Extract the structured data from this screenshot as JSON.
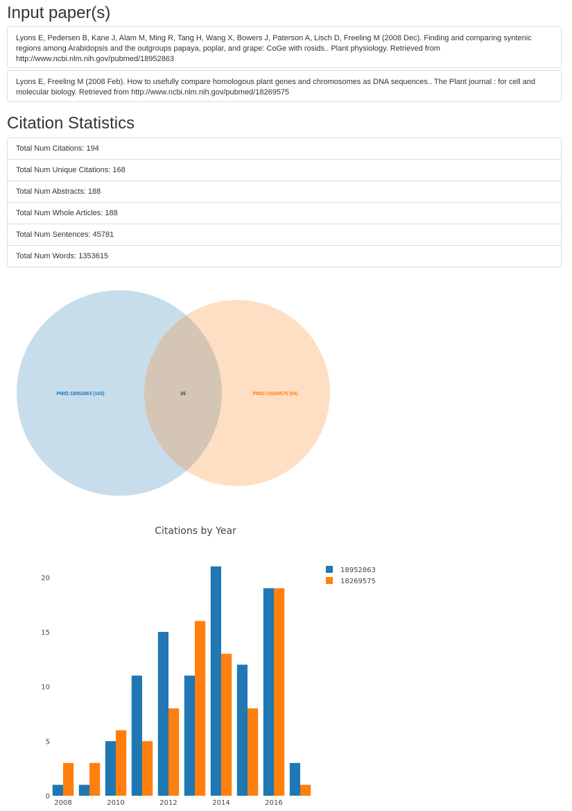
{
  "headings": {
    "input_papers": "Input paper(s)",
    "citation_statistics": "Citation Statistics"
  },
  "papers": [
    "Lyons E, Pedersen B, Kane J, Alam M, Ming R, Tang H, Wang X, Bowers J, Paterson A, Lisch D, Freeling M (2008 Dec). Finding and comparing syntenic regions among Arabidopsis and the outgroups papaya, poplar, and grape: CoGe with rosids.. Plant physiology. Retrieved from http://www.ncbi.nlm.nih.gov/pubmed/18952863",
    "Lyons E, Freeling M (2008 Feb). How to usefully compare homologous plant genes and chromosomes as DNA sequences.. The Plant journal : for cell and molecular biology. Retrieved from http://www.ncbi.nlm.nih.gov/pubmed/18269575"
  ],
  "stats": [
    "Total Num Citations: 194",
    "Total Num Unique Citations: 168",
    "Total Num Abstracts: 188",
    "Total Num Whole Articles: 188",
    "Total Num Sentences: 45781",
    "Total Num Words: 1353615"
  ],
  "venn": {
    "left_label": "PMID:18952863 (103)",
    "right_label": "PMID:18269575 (64)",
    "overlap_label": "26",
    "left_color": "#1f77b4",
    "right_color": "#ff7f0e"
  },
  "chart_data": {
    "type": "bar",
    "title": "Citations by Year",
    "x": [
      2008,
      2009,
      2010,
      2011,
      2012,
      2013,
      2014,
      2015,
      2016,
      2017
    ],
    "x_tick_labels": [
      "2008",
      "2010",
      "2012",
      "2014",
      "2016"
    ],
    "x_tick_values": [
      2008,
      2010,
      2012,
      2014,
      2016
    ],
    "y_ticks": [
      0,
      5,
      10,
      15,
      20
    ],
    "ylim": [
      0,
      22
    ],
    "series": [
      {
        "name": "18952863",
        "color": "#1f77b4",
        "values": [
          1,
          1,
          5,
          11,
          15,
          11,
          21,
          12,
          19,
          3
        ]
      },
      {
        "name": "18269575",
        "color": "#ff7f0e",
        "values": [
          3,
          3,
          6,
          5,
          8,
          16,
          13,
          8,
          19,
          1
        ]
      }
    ],
    "legend_position": "top-right",
    "grid": false
  }
}
